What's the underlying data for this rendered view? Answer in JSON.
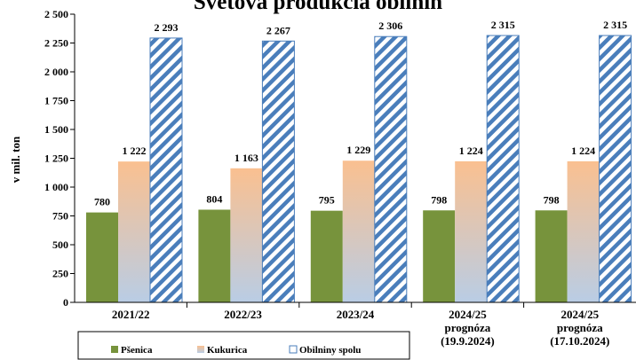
{
  "chart_data": {
    "type": "bar",
    "title": "Svetová produkcia obilnín",
    "ylabel": "v mil. ton",
    "xlabel": "",
    "ylim": [
      0,
      2500
    ],
    "ytick_step": 250,
    "yticks": [
      "0",
      "250",
      "500",
      "750",
      "1 000",
      "1 250",
      "1 500",
      "1 750",
      "2 000",
      "2 250",
      "2 500"
    ],
    "grid": false,
    "legend_position": "bottom-left",
    "categories": [
      [
        "2021/22"
      ],
      [
        "2022/23"
      ],
      [
        "2023/24"
      ],
      [
        "2024/25",
        "prognóza",
        "(19.9.2024)"
      ],
      [
        "2024/25",
        "prognóza",
        "(17.10.2024)"
      ]
    ],
    "series": [
      {
        "name": "Pšenica",
        "values": [
          780,
          804,
          795,
          798,
          798
        ],
        "labels": [
          "780",
          "804",
          "795",
          "798",
          "798"
        ],
        "color": "#77933c",
        "style": "solid"
      },
      {
        "name": "Kukurica",
        "values": [
          1222,
          1163,
          1229,
          1224,
          1224
        ],
        "labels": [
          "1 222",
          "1 163",
          "1 229",
          "1 224",
          "1 224"
        ],
        "color": "#fac090",
        "color2": "#b9cde5",
        "style": "gradient"
      },
      {
        "name": "Obilniny spolu",
        "values": [
          2293,
          2267,
          2306,
          2315,
          2315
        ],
        "labels": [
          "2 293",
          "2 267",
          "2 306",
          "2 315",
          "2 315"
        ],
        "color": "#4a7ebb",
        "style": "hatched"
      }
    ]
  }
}
